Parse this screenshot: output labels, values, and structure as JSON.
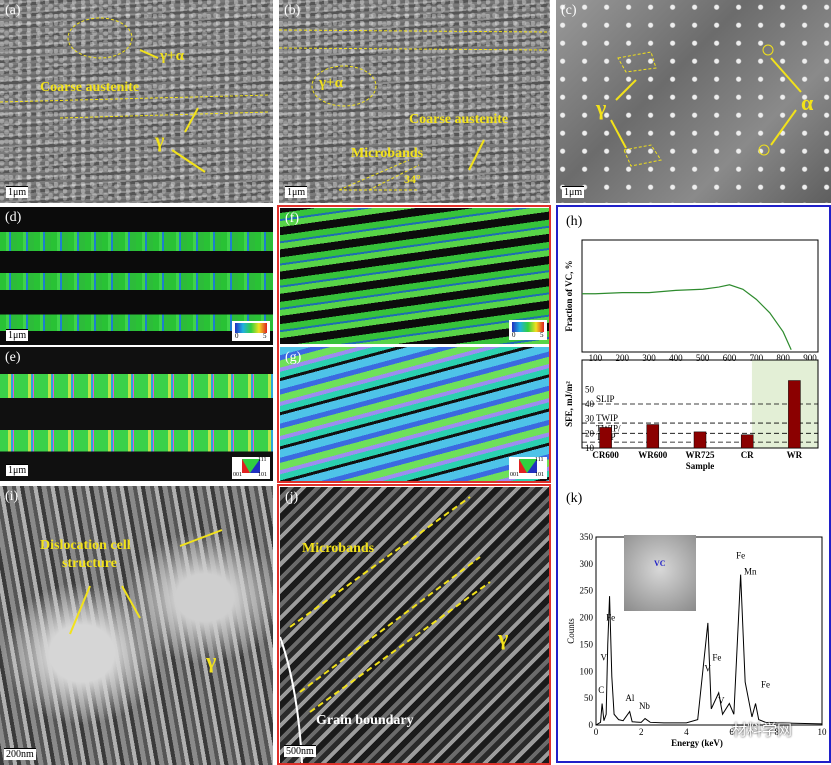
{
  "panels": {
    "a": {
      "label": "(a)",
      "scale": "1μm",
      "gamma_alpha": "γ+α",
      "coarse": "Coarse austenite",
      "gamma": "γ"
    },
    "b": {
      "label": "(b)",
      "scale": "1μm",
      "gamma_alpha": "γ+α",
      "coarse": "Coarse austenite",
      "microbands": "Microbands",
      "angle": "34°"
    },
    "c": {
      "label": "(c)",
      "scale": "1μm",
      "gamma": "γ",
      "alpha": "α"
    },
    "d": {
      "label": "(d)",
      "scale": "1μm",
      "key_min": "0",
      "key_max": "5"
    },
    "e": {
      "label": "(e)",
      "scale": "1μm",
      "ipf_111": "111",
      "ipf_001": "001",
      "ipf_101": "101"
    },
    "f": {
      "label": "(f)",
      "key_min": "0",
      "key_max": "5"
    },
    "g": {
      "label": "(g)",
      "ipf_111": "111",
      "ipf_001": "001",
      "ipf_101": "101"
    },
    "h": {
      "label": "(h)"
    },
    "i": {
      "label": "(i)",
      "scale": "200nm",
      "dislocation_line1": "Dislocation cell",
      "dislocation_line2": "structure",
      "gamma": "γ"
    },
    "j": {
      "label": "(j)",
      "scale": "500nm",
      "microbands": "Microbands",
      "gamma": "γ",
      "grain_boundary": "Grain boundary"
    },
    "k": {
      "label": "(k)",
      "inset_label": "VC",
      "watermark": "材料学网"
    }
  },
  "chart_data": [
    {
      "type": "line",
      "panel": "h-top",
      "ylabel": "Fraction of VC, %",
      "x_ticks": [
        100,
        200,
        300,
        400,
        500,
        600,
        700,
        800,
        900
      ],
      "xlim": [
        50,
        930
      ],
      "ylim": [
        0,
        1
      ],
      "series": [
        {
          "x": [
            50,
            100,
            200,
            300,
            400,
            500,
            560,
            600,
            650,
            700,
            750,
            800,
            830
          ],
          "y": [
            0.52,
            0.52,
            0.53,
            0.53,
            0.55,
            0.56,
            0.58,
            0.6,
            0.56,
            0.47,
            0.35,
            0.18,
            0.02
          ]
        }
      ]
    },
    {
      "type": "bar",
      "panel": "h-bottom",
      "ylabel": "SFE, mJ/m²",
      "xlabel": "Sample",
      "categories": [
        "CR600",
        "WR600",
        "WR725",
        "CR",
        "WR"
      ],
      "values": [
        24,
        26,
        21,
        19,
        56
      ],
      "y_ticks": [
        10,
        20,
        30,
        40,
        50
      ],
      "ylim": [
        10,
        70
      ],
      "thresholds": [
        {
          "label": "SLIP",
          "value": 40
        },
        {
          "label": "TWIP",
          "value": 27
        },
        {
          "label": "TWIP/",
          "value": 20
        },
        {
          "label": "TRIP",
          "value": 14
        }
      ],
      "bar_color": "#8b0000"
    },
    {
      "type": "line",
      "panel": "k",
      "ylabel": "Counts",
      "xlabel": "Energy (keV)",
      "x_ticks": [
        0,
        2,
        4,
        6,
        8,
        10
      ],
      "y_ticks": [
        0,
        50,
        100,
        150,
        200,
        250,
        300,
        350
      ],
      "xlim": [
        0,
        10
      ],
      "ylim": [
        0,
        350
      ],
      "peak_labels": [
        "C",
        "V",
        "Fe",
        "Al",
        "Nb",
        "V",
        "Fe",
        "V",
        "Fe",
        "Mn",
        "Fe"
      ],
      "series": [
        {
          "x": [
            0.0,
            0.2,
            0.27,
            0.35,
            0.45,
            0.52,
            0.6,
            0.7,
            0.8,
            1.0,
            1.2,
            1.49,
            1.6,
            2.0,
            2.17,
            2.4,
            3.0,
            4.0,
            4.5,
            4.95,
            5.1,
            5.43,
            5.6,
            5.9,
            6.1,
            6.4,
            6.6,
            6.9,
            7.06,
            7.2,
            7.5,
            8.0,
            9.0,
            10.0
          ],
          "y": [
            0,
            5,
            40,
            8,
            20,
            150,
            240,
            90,
            20,
            10,
            8,
            25,
            6,
            5,
            12,
            5,
            4,
            4,
            10,
            190,
            30,
            60,
            20,
            40,
            20,
            280,
            80,
            15,
            40,
            10,
            5,
            4,
            3,
            2
          ]
        }
      ]
    }
  ],
  "colors": {
    "red_frame": "#e0302a",
    "blue_frame": "#2020c8",
    "yellow": "#f2e21a"
  }
}
